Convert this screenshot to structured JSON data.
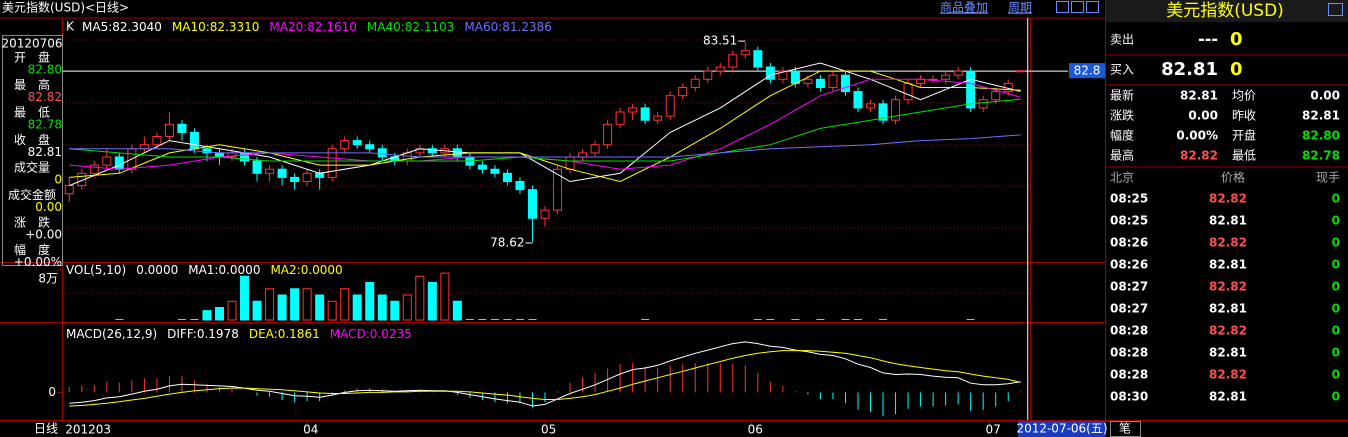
{
  "header": {
    "title": "美元指数(USD)<日线>",
    "links": [
      "商品叠加",
      "周期"
    ]
  },
  "info": {
    "date": "20120706",
    "rows": [
      {
        "label": "开　盘",
        "value": "82.80",
        "color": "#00e000"
      },
      {
        "label": "最　高",
        "value": "82.82",
        "color": "#ff5050"
      },
      {
        "label": "最　低",
        "value": "82.78",
        "color": "#00e000"
      },
      {
        "label": "收　盘",
        "value": "82.81",
        "color": "#ffffff"
      },
      {
        "label": "成交量",
        "value": "0",
        "color": "#ffff00"
      },
      {
        "label": "成交金额",
        "value": "0.00",
        "color": "#ffff00"
      },
      {
        "label": "涨　跌",
        "value": "+0.00",
        "color": "#ffffff"
      },
      {
        "label": "幅　度",
        "value": "+0.00%",
        "color": "#ffffff"
      }
    ]
  },
  "chart": {
    "type": "candlestick",
    "legend_k": "K",
    "up_color": "#ff3232",
    "down_color": "#00ffff",
    "xlim": [
      -0.5,
      76.5
    ],
    "ylim": [
      78.13,
      84.1
    ],
    "month_ticks": [
      {
        "value": 0,
        "label": "201203"
      },
      {
        "value": 19,
        "label": "04"
      },
      {
        "value": 38,
        "label": "05"
      },
      {
        "value": 54.5,
        "label": "06"
      },
      {
        "value": 73.5,
        "label": "07"
      }
    ],
    "candles": [
      [
        79.8,
        80.0,
        80.2,
        79.6
      ],
      [
        80.0,
        80.3,
        80.4,
        79.9
      ],
      [
        80.3,
        80.5,
        80.6,
        80.2
      ],
      [
        80.5,
        80.7,
        80.9,
        80.4
      ],
      [
        80.7,
        80.4,
        80.8,
        80.3
      ],
      [
        80.4,
        80.9,
        81.0,
        80.3
      ],
      [
        80.9,
        81.0,
        81.2,
        80.8
      ],
      [
        81.0,
        81.2,
        81.3,
        80.9
      ],
      [
        81.2,
        81.5,
        81.8,
        81.1
      ],
      [
        81.5,
        81.3,
        81.6,
        81.1
      ],
      [
        81.3,
        80.9,
        81.4,
        80.8
      ],
      [
        80.9,
        80.8,
        81.0,
        80.6
      ],
      [
        80.8,
        80.7,
        80.9,
        80.5
      ],
      [
        80.7,
        80.8,
        80.9,
        80.6
      ],
      [
        80.8,
        80.6,
        80.9,
        80.5
      ],
      [
        80.6,
        80.3,
        80.7,
        80.1
      ],
      [
        80.3,
        80.4,
        80.5,
        80.1
      ],
      [
        80.4,
        80.2,
        80.5,
        80.0
      ],
      [
        80.2,
        80.1,
        80.3,
        79.9
      ],
      [
        80.1,
        80.3,
        80.4,
        80.0
      ],
      [
        80.3,
        80.2,
        80.4,
        79.9
      ],
      [
        80.2,
        80.9,
        81.0,
        80.1
      ],
      [
        80.9,
        81.1,
        81.2,
        80.8
      ],
      [
        81.1,
        81.0,
        81.2,
        80.9
      ],
      [
        81.0,
        80.9,
        81.1,
        80.8
      ],
      [
        80.9,
        80.7,
        81.0,
        80.6
      ],
      [
        80.7,
        80.6,
        80.8,
        80.5
      ],
      [
        80.6,
        80.8,
        80.9,
        80.5
      ],
      [
        80.8,
        80.9,
        81.0,
        80.7
      ],
      [
        80.9,
        80.8,
        81.0,
        80.7
      ],
      [
        80.8,
        80.9,
        81.0,
        80.7
      ],
      [
        80.9,
        80.7,
        81.0,
        80.6
      ],
      [
        80.7,
        80.5,
        80.8,
        80.4
      ],
      [
        80.5,
        80.4,
        80.6,
        80.3
      ],
      [
        80.4,
        80.3,
        80.5,
        80.2
      ],
      [
        80.3,
        80.1,
        80.4,
        80.0
      ],
      [
        80.1,
        79.9,
        80.2,
        79.8
      ],
      [
        79.9,
        79.2,
        80.0,
        78.62
      ],
      [
        79.2,
        79.4,
        79.5,
        79.0
      ],
      [
        79.4,
        80.4,
        80.5,
        79.3
      ],
      [
        80.4,
        80.7,
        80.8,
        80.3
      ],
      [
        80.7,
        80.8,
        80.9,
        80.6
      ],
      [
        80.8,
        81.0,
        81.1,
        80.7
      ],
      [
        81.0,
        81.5,
        81.6,
        80.9
      ],
      [
        81.5,
        81.8,
        81.9,
        81.4
      ],
      [
        81.8,
        81.9,
        82.0,
        81.6
      ],
      [
        81.9,
        81.6,
        82.0,
        81.5
      ],
      [
        81.6,
        81.7,
        81.8,
        81.5
      ],
      [
        81.7,
        82.2,
        82.3,
        81.6
      ],
      [
        82.2,
        82.4,
        82.5,
        82.1
      ],
      [
        82.4,
        82.6,
        82.7,
        82.3
      ],
      [
        82.6,
        82.8,
        82.9,
        82.5
      ],
      [
        82.8,
        82.9,
        83.0,
        82.7
      ],
      [
        82.9,
        83.2,
        83.3,
        82.8
      ],
      [
        83.2,
        83.3,
        83.51,
        83.1
      ],
      [
        83.3,
        82.9,
        83.4,
        82.8
      ],
      [
        82.9,
        82.6,
        83.0,
        82.5
      ],
      [
        82.6,
        82.8,
        82.9,
        82.5
      ],
      [
        82.8,
        82.5,
        82.9,
        82.4
      ],
      [
        82.5,
        82.6,
        82.7,
        82.4
      ],
      [
        82.6,
        82.4,
        82.7,
        82.3
      ],
      [
        82.4,
        82.7,
        82.8,
        82.3
      ],
      [
        82.7,
        82.3,
        82.8,
        82.2
      ],
      [
        82.3,
        81.9,
        82.4,
        81.8
      ],
      [
        81.9,
        82.0,
        82.1,
        81.8
      ],
      [
        82.0,
        81.6,
        82.1,
        81.5
      ],
      [
        81.6,
        82.1,
        82.2,
        81.5
      ],
      [
        82.1,
        82.5,
        82.6,
        82.0
      ],
      [
        82.5,
        82.6,
        82.7,
        82.4
      ],
      [
        82.6,
        82.6,
        82.7,
        82.5
      ],
      [
        82.6,
        82.7,
        82.8,
        82.5
      ],
      [
        82.7,
        82.8,
        82.9,
        82.6
      ],
      [
        82.8,
        81.9,
        82.9,
        81.8
      ],
      [
        81.9,
        82.1,
        82.2,
        81.8
      ],
      [
        82.1,
        82.3,
        82.4,
        82.0
      ],
      [
        82.3,
        82.5,
        82.6,
        82.2
      ],
      [
        82.8,
        82.81,
        82.82,
        82.78
      ]
    ],
    "ma_x": [
      0,
      4,
      8,
      12,
      16,
      20,
      24,
      28,
      32,
      36,
      40,
      44,
      48,
      52,
      56,
      60,
      64,
      68,
      72,
      76
    ],
    "ma": [
      {
        "label": "MA5:",
        "legend_value": "82.3040",
        "color": "#ffffff",
        "values": [
          80.0,
          80.5,
          81.1,
          80.9,
          80.7,
          80.3,
          80.5,
          80.9,
          80.8,
          80.8,
          80.1,
          80.3,
          81.3,
          81.9,
          82.7,
          83.0,
          82.6,
          82.1,
          82.6,
          82.304
        ]
      },
      {
        "label": "MA10:",
        "legend_value": "82.3310",
        "color": "#ffff00",
        "values": [
          80.2,
          80.3,
          80.8,
          81.0,
          80.8,
          80.5,
          80.5,
          80.7,
          80.8,
          80.8,
          80.4,
          80.1,
          80.7,
          81.4,
          82.2,
          82.8,
          82.8,
          82.4,
          82.4,
          82.331
        ]
      },
      {
        "label": "MA20:",
        "legend_value": "82.1610",
        "color": "#ff00ff",
        "values": [
          80.5,
          80.4,
          80.5,
          80.7,
          80.8,
          80.7,
          80.6,
          80.6,
          80.7,
          80.7,
          80.6,
          80.4,
          80.5,
          80.9,
          81.5,
          82.2,
          82.6,
          82.6,
          82.5,
          82.161
        ]
      },
      {
        "label": "MA40:",
        "legend_value": "82.1103",
        "color": "#00e000",
        "values": [
          80.9,
          80.8,
          80.7,
          80.7,
          80.6,
          80.6,
          80.6,
          80.6,
          80.6,
          80.7,
          80.6,
          80.6,
          80.6,
          80.8,
          81.0,
          81.4,
          81.6,
          81.8,
          82.0,
          82.1103
        ]
      },
      {
        "label": "MA60:",
        "legend_value": "81.2386",
        "color": "#7070ff",
        "values": [
          80.9,
          80.9,
          80.9,
          80.8,
          80.8,
          80.8,
          80.8,
          80.7,
          80.7,
          80.7,
          80.7,
          80.7,
          80.7,
          80.8,
          80.9,
          80.95,
          81.0,
          81.1,
          81.15,
          81.2386
        ]
      }
    ]
  },
  "volume": {
    "title": "VOL(5,10)",
    "value": "0.0000",
    "ma1": "MA1:0.0000",
    "ma2": "MA2:0.0000",
    "ylim": [
      0,
      8.8
    ],
    "yticks": [
      {
        "value": 8,
        "label": "8万"
      }
    ],
    "values": [
      0,
      0,
      0,
      0,
      0,
      0,
      0,
      0,
      0,
      0,
      0,
      1.5,
      2,
      3,
      7,
      3,
      5,
      4,
      5,
      5,
      4,
      3,
      5,
      4,
      6,
      4,
      3,
      4,
      7,
      6,
      7.5,
      3,
      0,
      0,
      0,
      0,
      0,
      0,
      0,
      0,
      0,
      0,
      0,
      0,
      0,
      0,
      0,
      0,
      0,
      0,
      0,
      0,
      0,
      0,
      0,
      0,
      0,
      0,
      0,
      0,
      0,
      0,
      0,
      0,
      0,
      0,
      0,
      0,
      0,
      0,
      0,
      0,
      0,
      0,
      0,
      0,
      0
    ]
  },
  "macd": {
    "title": "MACD(26,12,9)",
    "diff_label": "DIFF:",
    "dea_label": "DEA:",
    "macd_label": "MACD:",
    "ylim": [
      -0.6,
      1.15
    ],
    "yticks": [
      0
    ],
    "diff": [
      -0.2,
      -0.18,
      -0.15,
      -0.1,
      -0.08,
      -0.03,
      0.02,
      0.06,
      0.12,
      0.15,
      0.14,
      0.13,
      0.12,
      0.11,
      0.08,
      0.04,
      0.02,
      -0.02,
      -0.06,
      -0.07,
      -0.09,
      -0.05,
      0,
      0.03,
      0.04,
      0.03,
      0.02,
      0.03,
      0.04,
      0.03,
      0.03,
      0,
      -0.04,
      -0.08,
      -0.12,
      -0.15,
      -0.18,
      -0.25,
      -0.22,
      -0.12,
      -0.02,
      0.06,
      0.14,
      0.24,
      0.34,
      0.42,
      0.45,
      0.5,
      0.58,
      0.65,
      0.72,
      0.78,
      0.84,
      0.9,
      0.93,
      0.9,
      0.85,
      0.83,
      0.78,
      0.75,
      0.7,
      0.68,
      0.62,
      0.52,
      0.46,
      0.36,
      0.33,
      0.34,
      0.33,
      0.3,
      0.28,
      0.27,
      0.17,
      0.14,
      0.14,
      0.16,
      0.1978
    ],
    "dea": [
      -0.25,
      -0.24,
      -0.22,
      -0.2,
      -0.17,
      -0.14,
      -0.11,
      -0.07,
      -0.03,
      0,
      0.03,
      0.05,
      0.07,
      0.08,
      0.08,
      0.07,
      0.06,
      0.05,
      0.03,
      0.01,
      -0.01,
      -0.02,
      -0.02,
      -0.01,
      0,
      0,
      0.01,
      0.01,
      0.02,
      0.02,
      0.02,
      0.02,
      0.01,
      -0.01,
      -0.03,
      -0.05,
      -0.08,
      -0.11,
      -0.13,
      -0.13,
      -0.11,
      -0.08,
      -0.04,
      0.02,
      0.08,
      0.15,
      0.21,
      0.27,
      0.33,
      0.39,
      0.45,
      0.51,
      0.57,
      0.63,
      0.68,
      0.72,
      0.75,
      0.77,
      0.77,
      0.77,
      0.76,
      0.74,
      0.72,
      0.68,
      0.64,
      0.58,
      0.53,
      0.49,
      0.46,
      0.43,
      0.4,
      0.38,
      0.34,
      0.3,
      0.27,
      0.24,
      0.1861
    ],
    "hist": [
      0.1,
      0.12,
      0.14,
      0.2,
      0.18,
      0.22,
      0.26,
      0.26,
      0.3,
      0.3,
      0.22,
      0.16,
      0.1,
      0.06,
      0,
      -0.06,
      -0.08,
      -0.14,
      -0.18,
      -0.16,
      -0.16,
      -0.06,
      0.04,
      0.08,
      0.08,
      0.06,
      0.02,
      0.04,
      0.04,
      0.02,
      0.02,
      -0.04,
      -0.1,
      -0.14,
      -0.18,
      -0.2,
      -0.2,
      -0.28,
      -0.18,
      0.02,
      0.18,
      0.28,
      0.36,
      0.44,
      0.52,
      0.54,
      0.48,
      0.46,
      0.5,
      0.52,
      0.54,
      0.54,
      0.54,
      0.54,
      0.5,
      0.36,
      0.2,
      0.12,
      0.02,
      -0.04,
      -0.12,
      -0.12,
      -0.2,
      -0.32,
      -0.36,
      -0.44,
      -0.4,
      -0.3,
      -0.26,
      -0.26,
      -0.24,
      -0.22,
      -0.34,
      -0.32,
      -0.26,
      -0.16,
      0.0235
    ]
  },
  "quote": {
    "title": "美元指数(USD)",
    "sell": {
      "label": "卖出",
      "price": "---",
      "volume": "0"
    },
    "buy": {
      "label": "买入",
      "price": "82.81",
      "volume": "0"
    },
    "stats": [
      [
        {
          "label": "最新",
          "value": "82.81",
          "color": "#ffffff"
        },
        {
          "label": "均价",
          "value": "0.00",
          "color": "#ffffff"
        }
      ],
      [
        {
          "label": "涨跌",
          "value": "0.00",
          "color": "#ffffff"
        },
        {
          "label": "昨收",
          "value": "82.81",
          "color": "#ffffff"
        }
      ],
      [
        {
          "label": "幅度",
          "value": "0.00%",
          "color": "#ffffff"
        },
        {
          "label": "开盘",
          "value": "82.80",
          "color": "#00e000"
        }
      ],
      [
        {
          "label": "最高",
          "value": "82.82",
          "color": "#ff5050"
        },
        {
          "label": "最低",
          "value": "82.78",
          "color": "#00e000"
        }
      ]
    ],
    "trade_header": [
      "北京",
      "价格",
      "现手"
    ],
    "trades": [
      [
        "08:25",
        "82.82",
        "0"
      ],
      [
        "08:25",
        "82.81",
        "0"
      ],
      [
        "08:26",
        "82.82",
        "0"
      ],
      [
        "08:26",
        "82.81",
        "0"
      ],
      [
        "08:27",
        "82.82",
        "0"
      ],
      [
        "08:27",
        "82.81",
        "0"
      ],
      [
        "08:28",
        "82.82",
        "0"
      ],
      [
        "08:28",
        "82.81",
        "0"
      ],
      [
        "08:28",
        "82.82",
        "0"
      ],
      [
        "08:30",
        "82.81",
        "0"
      ]
    ]
  },
  "footer": {
    "period": "日线",
    "date": "2012-07-06(五)",
    "tab": "笔"
  }
}
